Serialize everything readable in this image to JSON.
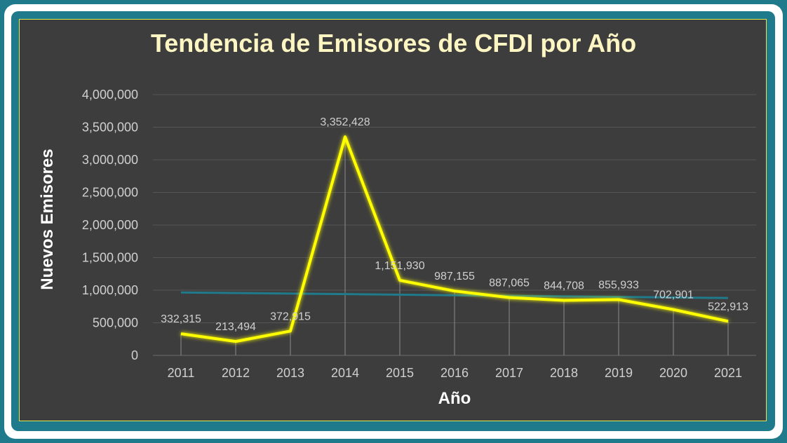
{
  "chart_data": {
    "type": "line",
    "title": "Tendencia de Emisores de CFDI por Año",
    "xlabel": "Año",
    "ylabel": "Nuevos Emisores",
    "categories": [
      "2011",
      "2012",
      "2013",
      "2014",
      "2015",
      "2016",
      "2017",
      "2018",
      "2019",
      "2020",
      "2021"
    ],
    "series": [
      {
        "values": [
          332315,
          213494,
          372915,
          3352428,
          1151930,
          987155,
          887065,
          844708,
          855933,
          702901,
          522913
        ],
        "data_labels": [
          "332,315",
          "213,494",
          "372,915",
          "3,352,428",
          "1,151,930",
          "987,155",
          "887,065",
          "844,708",
          "855,933",
          "702,901",
          "522,913"
        ],
        "color": "#ffff00"
      }
    ],
    "trendline": {
      "start": 965000,
      "end": 880000,
      "color": "#1f7a8c"
    },
    "ylim": [
      0,
      4000000
    ],
    "yticks": [
      0,
      500000,
      1000000,
      1500000,
      2000000,
      2500000,
      3000000,
      3500000,
      4000000
    ],
    "ytick_labels": [
      "0",
      "500,000",
      "1,000,000",
      "1,500,000",
      "2,000,000",
      "2,500,000",
      "3,000,000",
      "3,500,000",
      "4,000,000"
    ],
    "grid": true,
    "legend": "none"
  },
  "colors": {
    "frame": "#1f7a8c",
    "plot_background": "#3d3d3d",
    "plot_border": "#e6e84f",
    "title": "#fdf6c3"
  }
}
